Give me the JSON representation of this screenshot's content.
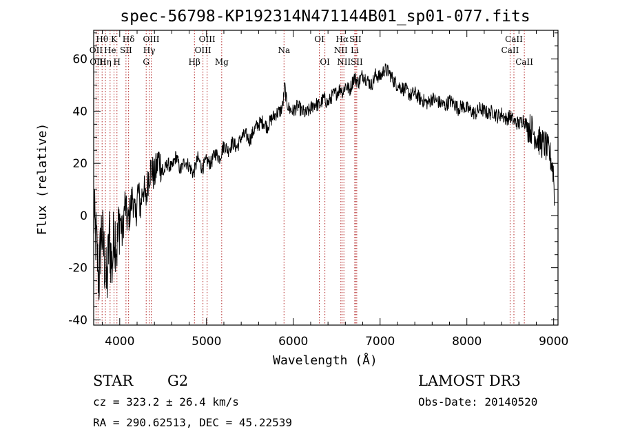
{
  "chart_data": {
    "type": "line",
    "title": "spec-56798-KP192314N471144B01_sp01-077.fits",
    "xlabel": "Wavelength (Å)",
    "ylabel": "Flux (relative)",
    "xlim": [
      3700,
      9050
    ],
    "ylim": [
      -42,
      71
    ],
    "xticks": [
      4000,
      5000,
      6000,
      7000,
      8000,
      9000
    ],
    "yticks": [
      -40,
      -20,
      0,
      20,
      40,
      60
    ],
    "grid": false,
    "series": [
      {
        "color": "#000000",
        "x": [
          3700,
          3730,
          3760,
          3790,
          3820,
          3850,
          3880,
          3910,
          3940,
          3970,
          4000,
          4030,
          4060,
          4090,
          4120,
          4150,
          4180,
          4210,
          4240,
          4270,
          4300,
          4330,
          4360,
          4400,
          4450,
          4500,
          4550,
          4600,
          4650,
          4700,
          4750,
          4800,
          4850,
          4900,
          4950,
          5000,
          5050,
          5100,
          5150,
          5200,
          5250,
          5300,
          5350,
          5400,
          5450,
          5500,
          5550,
          5600,
          5650,
          5700,
          5750,
          5800,
          5850,
          5880,
          5900,
          5920,
          5950,
          6000,
          6050,
          6100,
          6150,
          6200,
          6250,
          6300,
          6350,
          6400,
          6450,
          6500,
          6550,
          6570,
          6600,
          6650,
          6700,
          6750,
          6800,
          6850,
          6900,
          6950,
          7000,
          7050,
          7100,
          7150,
          7200,
          7250,
          7300,
          7350,
          7400,
          7450,
          7500,
          7550,
          7600,
          7650,
          7700,
          7750,
          7800,
          7850,
          7900,
          7950,
          8000,
          8050,
          8100,
          8150,
          8200,
          8250,
          8300,
          8350,
          8400,
          8450,
          8500,
          8550,
          8600,
          8650,
          8700,
          8750,
          8800,
          8850,
          8900,
          8950,
          8980,
          9000,
          9010
        ],
        "y": [
          0,
          -10,
          -25,
          -5,
          -15,
          -28,
          -8,
          -20,
          -5,
          -12,
          0,
          -8,
          5,
          -3,
          2,
          8,
          -2,
          10,
          3,
          12,
          5,
          15,
          18,
          15,
          22,
          16,
          20,
          18,
          23,
          17,
          21,
          19,
          16,
          22,
          18,
          21,
          20,
          24,
          22,
          27,
          25,
          28,
          26,
          30,
          31,
          29,
          33,
          35,
          36,
          34,
          37,
          39,
          40,
          42,
          50,
          44,
          41,
          40,
          42,
          40,
          39,
          41,
          43,
          42,
          45,
          43,
          46,
          47,
          49,
          47,
          50,
          48,
          53,
          51,
          54,
          52,
          50,
          54,
          53,
          56,
          55,
          52,
          50,
          49,
          48,
          46,
          47,
          45,
          44,
          43,
          45,
          44,
          43,
          42,
          44,
          43,
          41,
          42,
          41,
          40,
          39,
          41,
          40,
          39,
          40,
          38,
          39,
          37,
          38,
          36,
          35,
          37,
          34,
          33,
          30,
          28,
          27,
          24,
          20,
          16,
          2
        ]
      }
    ],
    "lines": [
      {
        "name": "Hθ",
        "wl": 3797,
        "row": 0
      },
      {
        "name": "OII",
        "wl": 3727,
        "row": 1
      },
      {
        "name": "OIII",
        "wl": 3750,
        "row": 2
      },
      {
        "name": "He",
        "wl": 3889,
        "row": 1
      },
      {
        "name": "Hη",
        "wl": 3835,
        "row": 2
      },
      {
        "name": "K",
        "wl": 3934,
        "row": 0
      },
      {
        "name": "H",
        "wl": 3968,
        "row": 2
      },
      {
        "name": "SII",
        "wl": 4072,
        "row": 1
      },
      {
        "name": "Hδ",
        "wl": 4102,
        "row": 0
      },
      {
        "name": "OIII",
        "wl": 4363,
        "row": 0
      },
      {
        "name": "Hγ",
        "wl": 4340,
        "row": 1
      },
      {
        "name": "G",
        "wl": 4305,
        "row": 2
      },
      {
        "name": "Hβ",
        "wl": 4861,
        "row": 2
      },
      {
        "name": "OIII",
        "wl": 5007,
        "row": 0
      },
      {
        "name": "OIII",
        "wl": 4959,
        "row": 1
      },
      {
        "name": "Mg",
        "wl": 5175,
        "row": 2
      },
      {
        "name": "Na",
        "wl": 5893,
        "row": 1
      },
      {
        "name": "OI",
        "wl": 6300,
        "row": 0
      },
      {
        "name": "OI",
        "wl": 6364,
        "row": 2
      },
      {
        "name": "Hα",
        "wl": 6563,
        "row": 0
      },
      {
        "name": "NII",
        "wl": 6548,
        "row": 1
      },
      {
        "name": "NII",
        "wl": 6583,
        "row": 2
      },
      {
        "name": "SII",
        "wl": 6716,
        "row": 0
      },
      {
        "name": "Li",
        "wl": 6708,
        "row": 1
      },
      {
        "name": "SII",
        "wl": 6731,
        "row": 2
      },
      {
        "name": "CaII",
        "wl": 8542,
        "row": 0
      },
      {
        "name": "CaII",
        "wl": 8498,
        "row": 1
      },
      {
        "name": "CaII",
        "wl": 8662,
        "row": 2
      }
    ]
  },
  "info": {
    "object_class": "STAR",
    "subclass": "G2",
    "survey": "LAMOST DR3",
    "cz": "cz = 323.2 ± 26.4 km/s",
    "obs_date": "Obs-Date: 20140520",
    "coords": "RA = 290.62513, DEC =  45.22539"
  }
}
